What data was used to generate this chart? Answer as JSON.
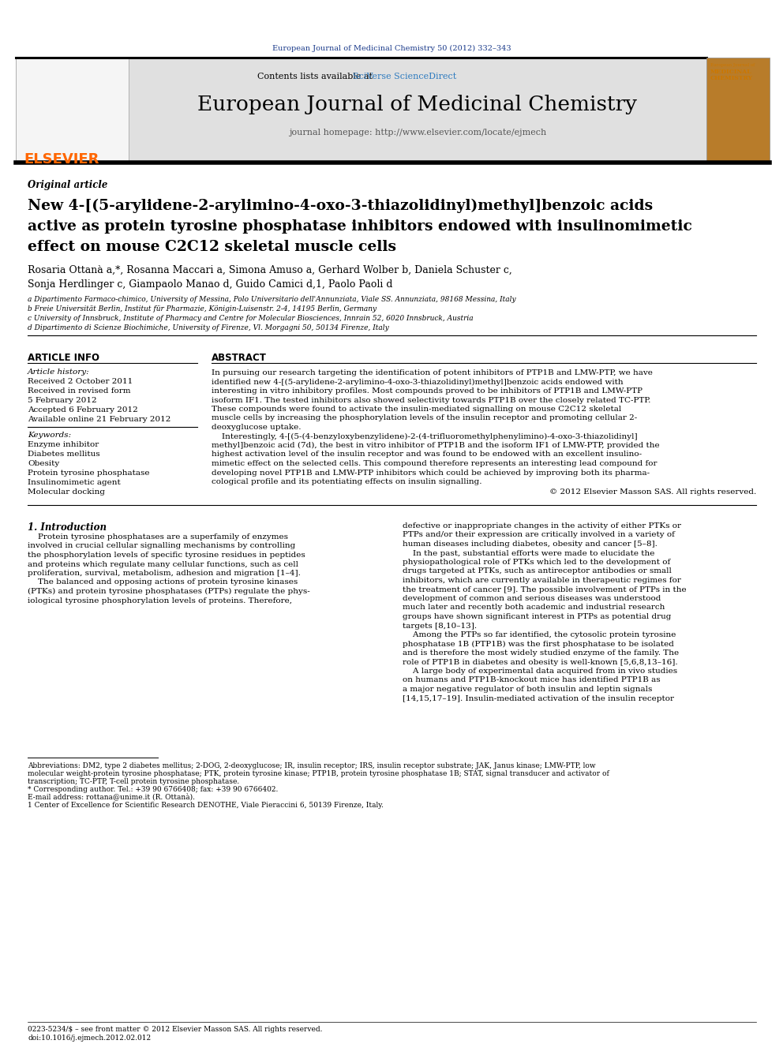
{
  "background_color": "#ffffff",
  "top_journal_ref": "European Journal of Medicinal Chemistry 50 (2012) 332–343",
  "top_journal_ref_color": "#1a3a8a",
  "header_bg_color": "#e0e0e0",
  "sciverse_color": "#2e7bbf",
  "journal_title": "European Journal of Medicinal Chemistry",
  "journal_homepage_label": "journal homepage: http://www.elsevier.com/locate/ejmech",
  "elsevier_color": "#ff6600",
  "section_label": "Original article",
  "article_title_line1": "New 4-[(5-arylidene-2-arylimino-4-oxo-3-thiazolidinyl)methyl]benzoic acids",
  "article_title_line2": "active as protein tyrosine phosphatase inhibitors endowed with insulinomimetic",
  "article_title_line3": "effect on mouse C2C12 skeletal muscle cells",
  "authors_line1": "Rosaria Ottanà a,*, Rosanna Maccari a, Simona Amuso a, Gerhard Wolber b, Daniela Schuster c,",
  "authors_line2": "Sonja Herdlinger c, Giampaolo Manao d, Guido Camici d,1, Paolo Paoli d",
  "affil_a": "a Dipartimento Farmaco-chimico, University of Messina, Polo Universitario dell'Annunziata, Viale SS. Annunziata, 98168 Messina, Italy",
  "affil_b": "b Freie Universität Berlin, Institut für Pharmazie, Königin-Luisenstr. 2-4, 14195 Berlin, Germany",
  "affil_c": "c University of Innsbruck, Institute of Pharmacy and Centre for Molecular Biosciences, Innrain 52, 6020 Innsbruck, Austria",
  "affil_d": "d Dipartimento di Scienze Biochimiche, University of Firenze, Vl. Morgagni 50, 50134 Firenze, Italy",
  "article_info_title": "ARTICLE INFO",
  "abstract_title": "ABSTRACT",
  "article_history_label": "Article history:",
  "history_lines": [
    "Received 2 October 2011",
    "Received in revised form",
    "5 February 2012",
    "Accepted 6 February 2012",
    "Available online 21 February 2012"
  ],
  "keywords_label": "Keywords:",
  "keywords": [
    "Enzyme inhibitor",
    "Diabetes mellitus",
    "Obesity",
    "Protein tyrosine phosphatase",
    "Insulinomimetic agent",
    "Molecular docking"
  ],
  "abstract_lines": [
    "In pursuing our research targeting the identification of potent inhibitors of PTP1B and LMW-PTP, we have",
    "identified new 4-[(5-arylidene-2-arylimino-4-oxo-3-thiazolidinyl)methyl]benzoic acids endowed with",
    "interesting in vitro inhibitory profiles. Most compounds proved to be inhibitors of PTP1B and LMW-PTP",
    "isoform IF1. The tested inhibitors also showed selectivity towards PTP1B over the closely related TC-PTP.",
    "These compounds were found to activate the insulin-mediated signalling on mouse C2C12 skeletal",
    "muscle cells by increasing the phosphorylation levels of the insulin receptor and promoting cellular 2-",
    "deoxyglucose uptake.",
    "    Interestingly, 4-[(5-(4-benzyloxybenzylidene)-2-(4-trifluoromethylphenylimino)-4-oxo-3-thiazolidinyl]",
    "methyl]benzoic acid (7d), the best in vitro inhibitor of PTP1B and the isoform IF1 of LMW-PTP, provided the",
    "highest activation level of the insulin receptor and was found to be endowed with an excellent insulino-",
    "mimetic effect on the selected cells. This compound therefore represents an interesting lead compound for",
    "developing novel PTP1B and LMW-PTP inhibitors which could be achieved by improving both its pharma-",
    "cological profile and its potentiating effects on insulin signalling."
  ],
  "copyright": "© 2012 Elsevier Masson SAS. All rights reserved.",
  "intro_title": "1. Introduction",
  "intro_left": [
    "    Protein tyrosine phosphatases are a superfamily of enzymes",
    "involved in crucial cellular signalling mechanisms by controlling",
    "the phosphorylation levels of specific tyrosine residues in peptides",
    "and proteins which regulate many cellular functions, such as cell",
    "proliferation, survival, metabolism, adhesion and migration [1–4].",
    "    The balanced and opposing actions of protein tyrosine kinases",
    "(PTKs) and protein tyrosine phosphatases (PTPs) regulate the phys-",
    "iological tyrosine phosphorylation levels of proteins. Therefore,"
  ],
  "intro_right": [
    "defective or inappropriate changes in the activity of either PTKs or",
    "PTPs and/or their expression are critically involved in a variety of",
    "human diseases including diabetes, obesity and cancer [5–8].",
    "    In the past, substantial efforts were made to elucidate the",
    "physiopathological role of PTKs which led to the development of",
    "drugs targeted at PTKs, such as antireceptor antibodies or small",
    "inhibitors, which are currently available in therapeutic regimes for",
    "the treatment of cancer [9]. The possible involvement of PTPs in the",
    "development of common and serious diseases was understood",
    "much later and recently both academic and industrial research",
    "groups have shown significant interest in PTPs as potential drug",
    "targets [8,10–13].",
    "    Among the PTPs so far identified, the cytosolic protein tyrosine",
    "phosphatase 1B (PTP1B) was the first phosphatase to be isolated",
    "and is therefore the most widely studied enzyme of the family. The",
    "role of PTP1B in diabetes and obesity is well-known [5,6,8,13–16].",
    "    A large body of experimental data acquired from in vivo studies",
    "on humans and PTP1B-knockout mice has identified PTP1B as",
    "a major negative regulator of both insulin and leptin signals",
    "[14,15,17–19]. Insulin-mediated activation of the insulin receptor"
  ],
  "footnote_lines": [
    "Abbreviations: DM2, type 2 diabetes mellitus; 2-DOG, 2-deoxyglucose; IR, insulin receptor; IRS, insulin receptor substrate; JAK, Janus kinase; LMW-PTP, low",
    "molecular weight-protein tyrosine phosphatase; PTK, protein tyrosine kinase; PTP1B, protein tyrosine phosphatase 1B; STAT, signal transducer and activator of",
    "transcription; TC-PTP, T-cell protein tyrosine phosphatase.",
    "* Corresponding author. Tel.: +39 90 6766408; fax: +39 90 6766402.",
    "E-mail address: rottana@unime.it (R. Ottanà).",
    "1 Center of Excellence for Scientific Research DENOTHE, Viale Pieraccini 6, 50139 Firenze, Italy."
  ],
  "footer_issn": "0223-5234/$ – see front matter © 2012 Elsevier Masson SAS. All rights reserved.",
  "footer_doi": "doi:10.1016/j.ejmech.2012.02.012"
}
